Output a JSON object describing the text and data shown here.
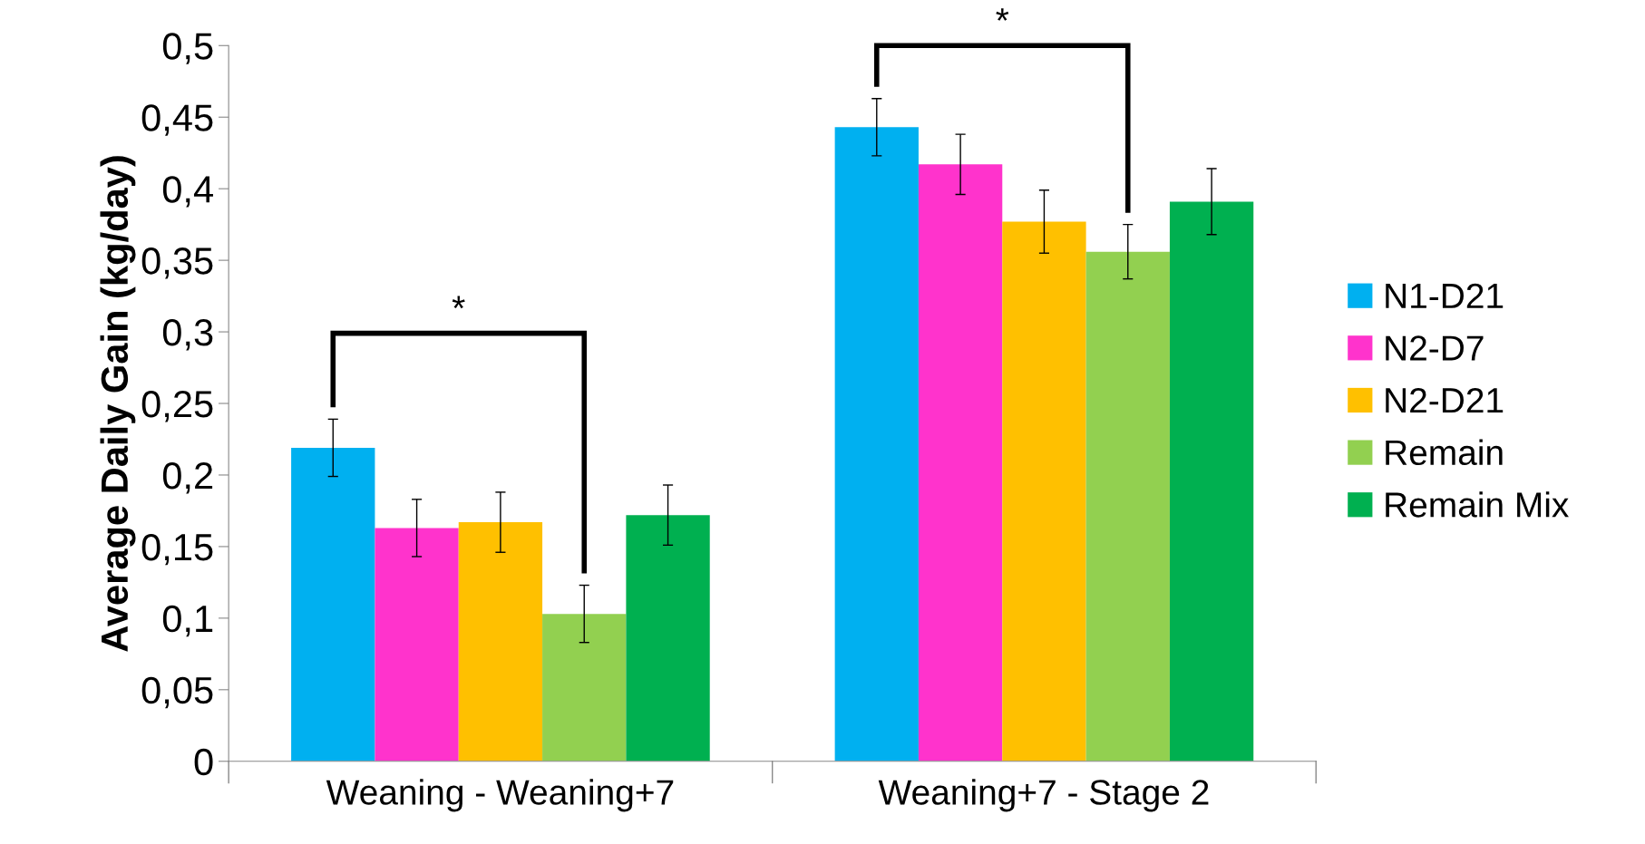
{
  "chart_data": {
    "type": "bar",
    "ylabel": "Average Daily Gain (kg/day)",
    "categories": [
      "Weaning - Weaning+7",
      "Weaning+7 - Stage 2"
    ],
    "series": [
      {
        "name": "N1-D21",
        "color": "#00b0f0",
        "values": [
          0.219,
          0.443
        ],
        "errors": [
          0.02,
          0.02
        ]
      },
      {
        "name": "N2-D7",
        "color": "#ff33cc",
        "values": [
          0.163,
          0.417
        ],
        "errors": [
          0.02,
          0.021
        ]
      },
      {
        "name": "N2-D21",
        "color": "#ffc000",
        "values": [
          0.167,
          0.377
        ],
        "errors": [
          0.021,
          0.022
        ]
      },
      {
        "name": "Remain",
        "color": "#92d050",
        "values": [
          0.103,
          0.356
        ],
        "errors": [
          0.02,
          0.019
        ]
      },
      {
        "name": "Remain Mix",
        "color": "#00b050",
        "values": [
          0.172,
          0.391
        ],
        "errors": [
          0.021,
          0.023
        ]
      }
    ],
    "ylim": [
      0,
      0.5
    ],
    "yticks": [
      0,
      {
        "value": 0.05,
        "label": "0,05"
      },
      {
        "value": 0.1,
        "label": "0,1"
      },
      {
        "value": 0.15,
        "label": "0,15"
      },
      {
        "value": 0.2,
        "label": "0,2"
      },
      {
        "value": 0.25,
        "label": "0,25"
      },
      {
        "value": 0.3,
        "label": "0,3"
      },
      {
        "value": 0.35,
        "label": "0,35"
      },
      {
        "value": 0.4,
        "label": "0,4"
      },
      {
        "value": 0.45,
        "label": "0,45"
      },
      {
        "value": 0.5,
        "label": "0,5"
      }
    ],
    "grid": false,
    "legend": "right",
    "annotations": [
      "*",
      "*"
    ]
  }
}
